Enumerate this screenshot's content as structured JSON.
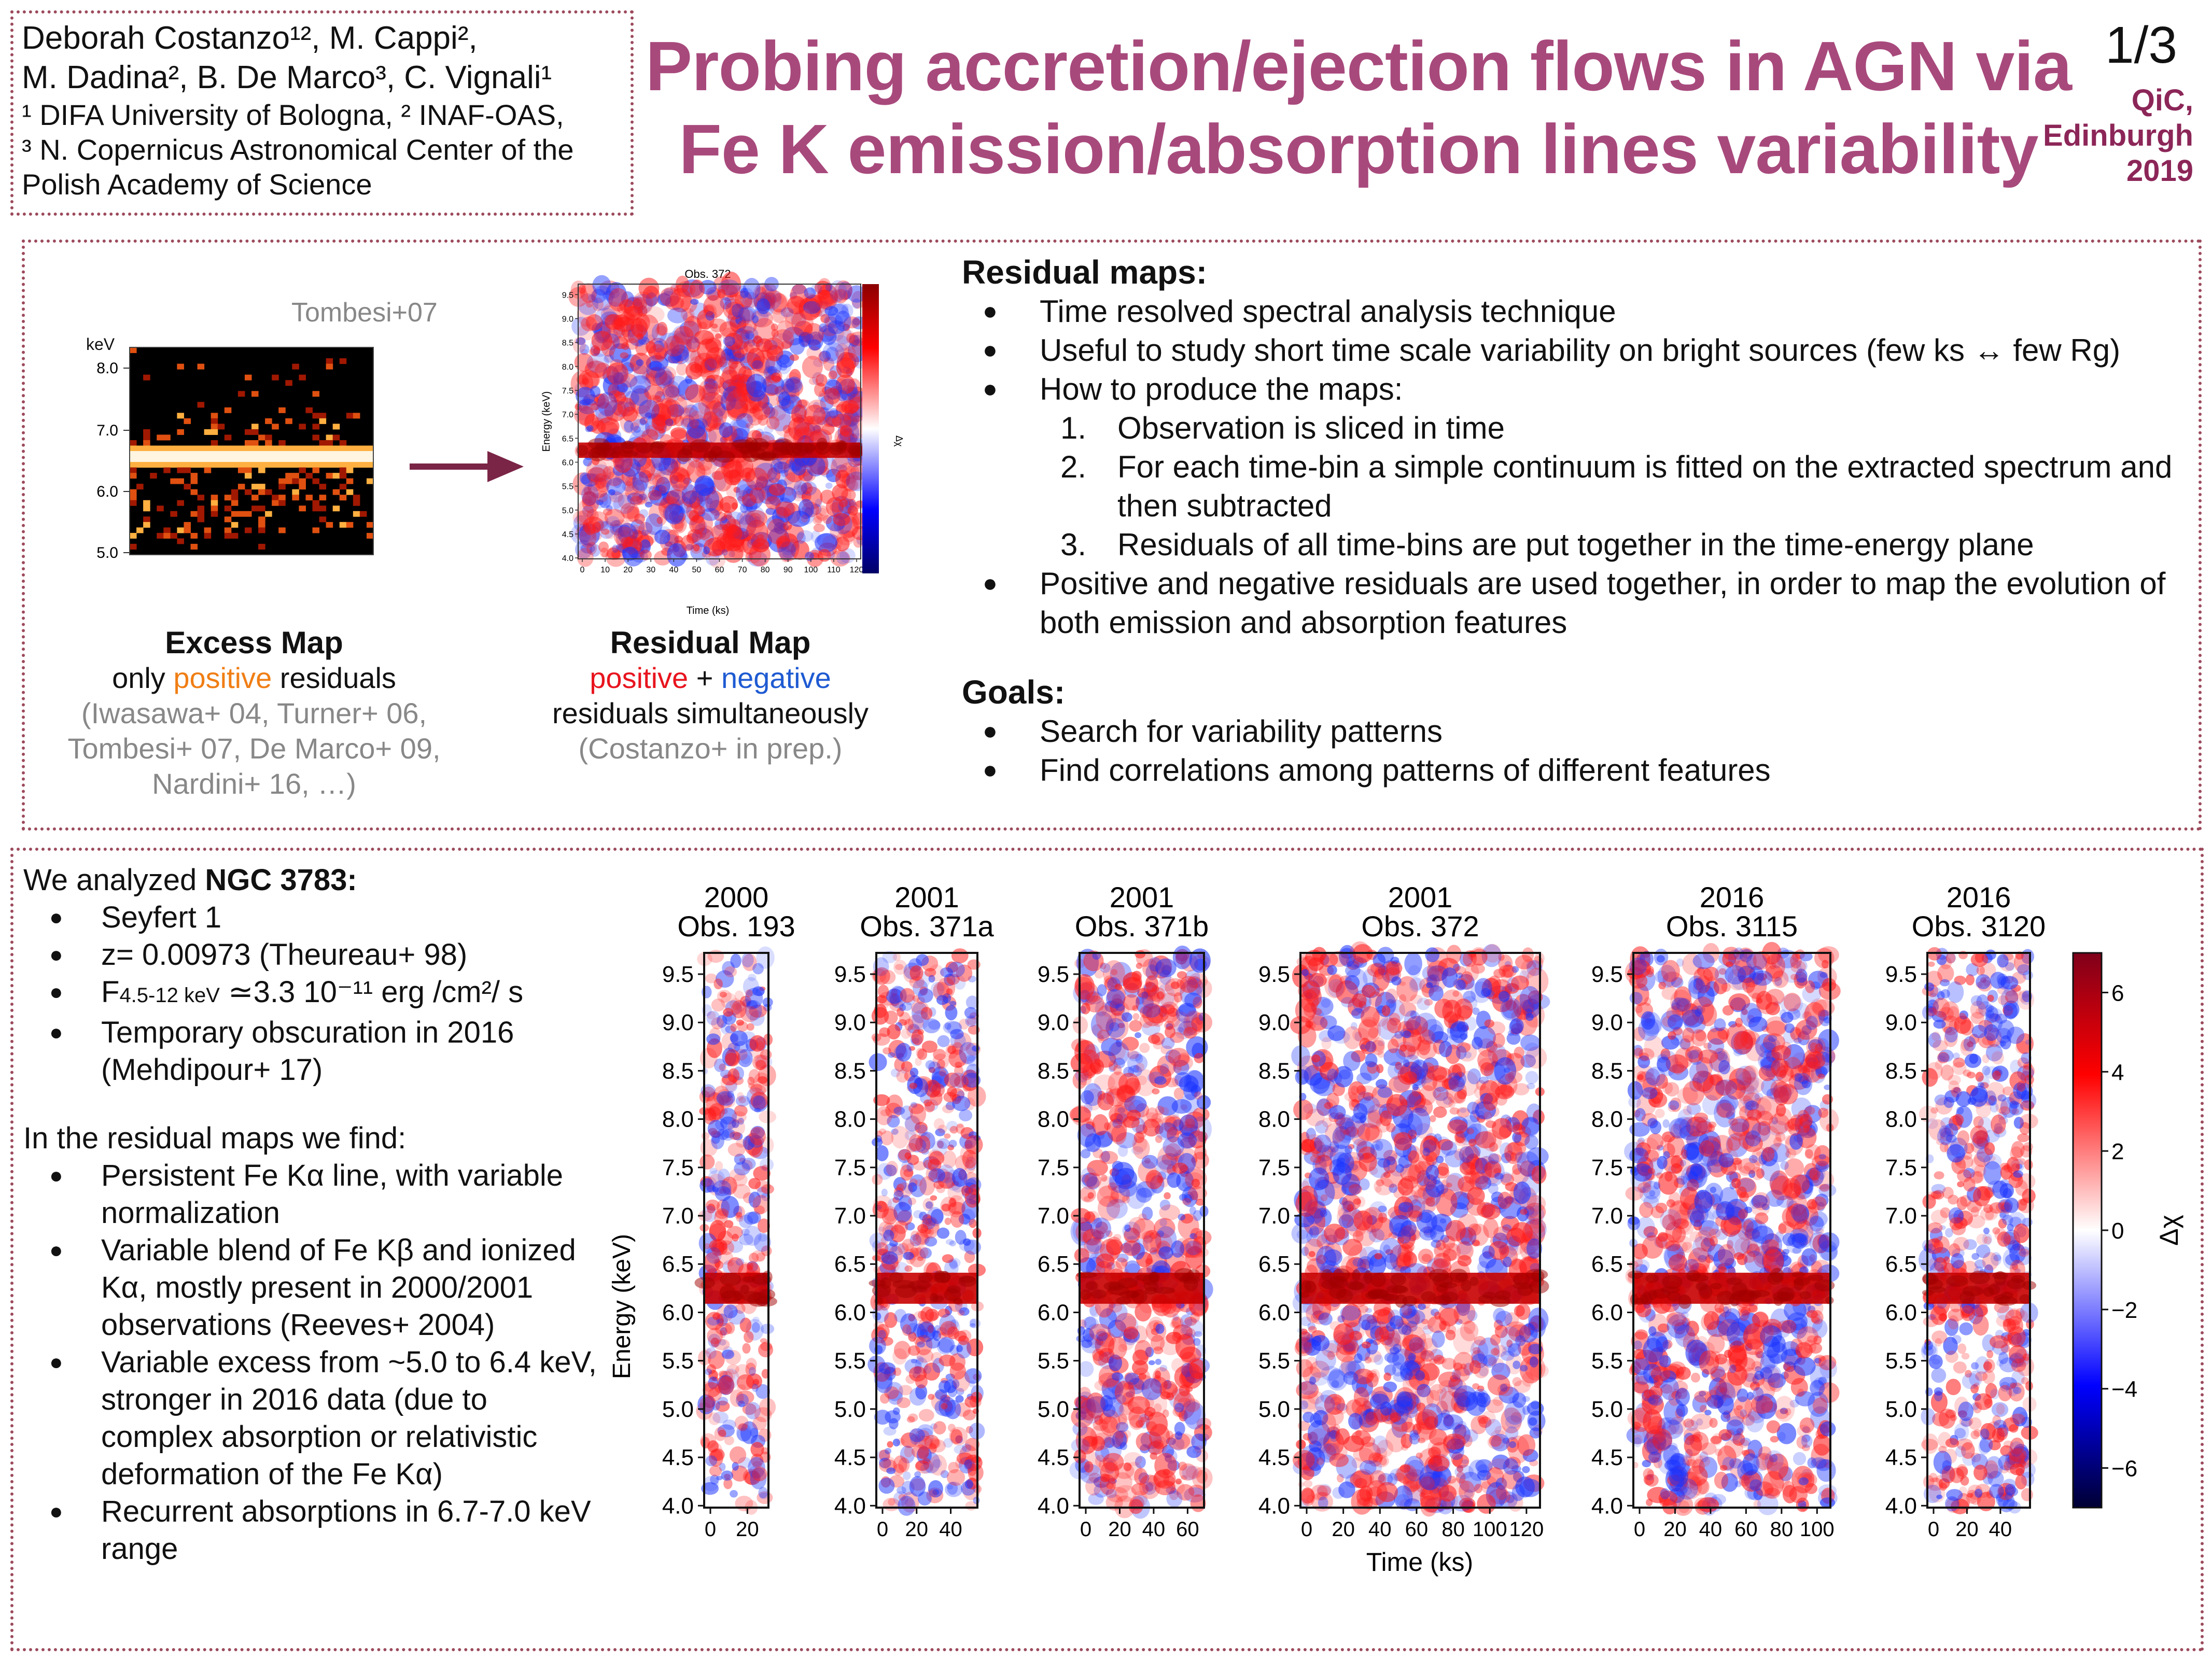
{
  "header": {
    "authors_lines": [
      "Deborah Costanzo¹², M. Cappi²,",
      "M. Dadina², B. De Marco³, C. Vignali¹"
    ],
    "affiliation_lines": [
      "¹ DIFA University of Bologna, ² INAF-OAS,",
      "³ N. Copernicus Astronomical Center of the",
      "Polish Academy of Science"
    ],
    "title_lines": [
      "Probing  accretion/ejection flows in AGN via",
      "Fe K emission/absorption lines variability"
    ],
    "page": "1/3",
    "venue_lines": [
      "QiC,",
      "Edinburgh",
      "2019"
    ]
  },
  "excess_map": {
    "citation": "Tombesi+07",
    "unit": "keV",
    "yticks": [
      "8.0",
      "7.0",
      "6.0",
      "5.0"
    ],
    "caption_title": "Excess Map",
    "caption_pre": "only ",
    "caption_positive": "positive",
    "caption_post": " residuals",
    "refs": [
      "(Iwasawa+ 04, Turner+ 06,",
      "Tombesi+ 07, De Marco+ 09,",
      "Nardini+ 16, …)"
    ]
  },
  "residual_map": {
    "plot_title": "Obs. 372",
    "ylabel": "Energy (keV)",
    "xlabel": "Time (ks)",
    "yticks": [
      "9.5",
      "9.0",
      "8.5",
      "8.0",
      "7.5",
      "7.0",
      "6.5",
      "6.0",
      "5.5",
      "5.0",
      "4.5",
      "4.0"
    ],
    "xticks": [
      "0",
      "10",
      "20",
      "30",
      "40",
      "50",
      "60",
      "70",
      "80",
      "90",
      "100",
      "110",
      "120"
    ],
    "cbar_label": "Δχ",
    "caption_title": "Residual Map",
    "caption_positive": "positive",
    "caption_plus": " + ",
    "caption_negative": "negative",
    "caption_line2": "residuals simultaneously",
    "caption_ref": "(Costanzo+ in prep.)"
  },
  "residual_maps_text": {
    "heading": "Residual maps:",
    "bullets": [
      "Time resolved spectral analysis technique",
      "Useful to study short time scale variability on bright sources (few ks ↔ few Rg)",
      "How to produce the maps:"
    ],
    "steps": [
      {
        "num": "1.",
        "text": "Observation is sliced in time"
      },
      {
        "num": "2.",
        "text": "For each time-bin a simple continuum is fitted on the extracted spectrum and then subtracted"
      },
      {
        "num": "3.",
        "text": "Residuals of all time-bins are put together in the time-energy plane"
      }
    ],
    "last_bullet": "Positive and negative residuals are used together, in order to map the evolution of both emission and absorption features",
    "goals_heading": "Goals:",
    "goals": [
      "Search for variability patterns",
      "Find correlations among patterns of different features"
    ]
  },
  "ngc": {
    "intro_pre": "We analyzed ",
    "intro_bold": "NGC 3783:",
    "facts": [
      "Seyfert 1",
      "z= 0.00973 (Theureau+ 98)",
      "Temporary obscuration in 2016 (Mehdipour+ 17)"
    ],
    "flux_F": "F",
    "flux_band": "4.5-12 keV",
    "flux_value": " ≃3.3 10⁻¹¹ erg /cm²/ s",
    "find_heading": "In the residual maps we find:",
    "findings": [
      "Persistent Fe Kα line, with variable normalization",
      "Variable blend of Fe Kβ and ionized Kα, mostly present in 2000/2001 observations (Reeves+ 2004)",
      "Variable excess from ~5.0 to 6.4 keV, stronger in 2016 data (due to complex absorption or relativistic deformation of the Fe Kα)",
      "Recurrent absorptions in 6.7-7.0 keV range"
    ]
  },
  "panel_figure": {
    "ylabel": "Energy (keV)",
    "xlabel": "Time (ks)",
    "cbar_label": "Δχ",
    "yticks": [
      "9.5",
      "9.0",
      "8.5",
      "8.0",
      "7.5",
      "7.0",
      "6.5",
      "6.0",
      "5.5",
      "5.0",
      "4.5",
      "4.0"
    ],
    "cbar_ticks": [
      "6",
      "4",
      "2",
      "0",
      "−2",
      "−4",
      "−6"
    ],
    "panels": [
      {
        "year": "2000",
        "obs": "Obs. 193",
        "xticks": [
          "0",
          "20"
        ]
      },
      {
        "year": "2001",
        "obs": "Obs. 371a",
        "xticks": [
          "0",
          "20",
          "40"
        ]
      },
      {
        "year": "2001",
        "obs": "Obs. 371b",
        "xticks": [
          "0",
          "20",
          "40",
          "60"
        ]
      },
      {
        "year": "2001",
        "obs": "Obs. 372",
        "xticks": [
          "0",
          "20",
          "40",
          "60",
          "80",
          "100",
          "120"
        ]
      },
      {
        "year": "2016",
        "obs": "Obs. 3115",
        "xticks": [
          "0",
          "20",
          "40",
          "60",
          "80",
          "100"
        ]
      },
      {
        "year": "2016",
        "obs": "Obs. 3120",
        "xticks": [
          "0",
          "20",
          "40"
        ]
      }
    ]
  },
  "colors": {
    "title": "#a8497c",
    "venue": "#8c2658",
    "border": "#9c4a5c",
    "positive": "#e8141e",
    "negative": "#1e5ad2",
    "excess_positive": "#f07e14",
    "arrow": "#7a2446"
  }
}
